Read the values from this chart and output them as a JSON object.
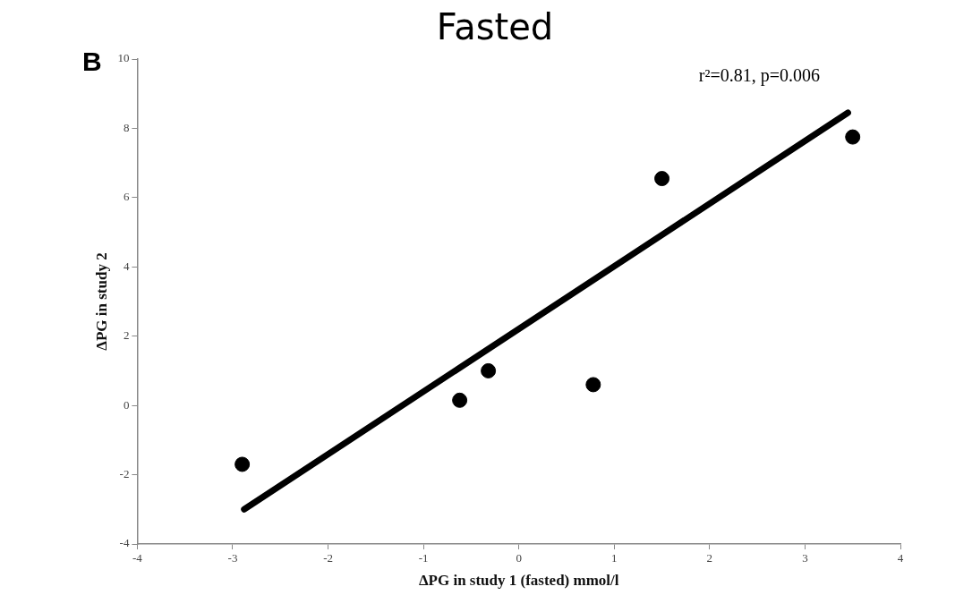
{
  "chart_data": {
    "type": "scatter",
    "title": "Fasted",
    "xlabel": "ΔPG in study 1 (fasted) mmol/l",
    "ylabel": "ΔPG in study 2",
    "annotations": [
      "B",
      "r²=0.81, p=0.006"
    ],
    "series": [
      {
        "color": "#000000",
        "x": [
          -2.9,
          -0.62,
          -0.32,
          0.78,
          1.5,
          3.5
        ],
        "values": [
          -1.7,
          0.15,
          1.0,
          0.6,
          6.55,
          7.75
        ]
      },
      {
        "type": "line",
        "color": "#000000",
        "x": [
          -2.88,
          3.45
        ],
        "values": [
          -3.0,
          8.45
        ],
        "marker": "none"
      }
    ],
    "xlim": [
      -4,
      4
    ],
    "xticks": [
      -4,
      -3,
      -2,
      -1,
      0,
      1,
      2,
      3,
      4
    ],
    "ylim": [
      -4,
      10
    ],
    "yticks": [
      -4,
      -2,
      0,
      2,
      4,
      6,
      8,
      10
    ],
    "grid": false,
    "legend": false,
    "marker": "circle"
  }
}
